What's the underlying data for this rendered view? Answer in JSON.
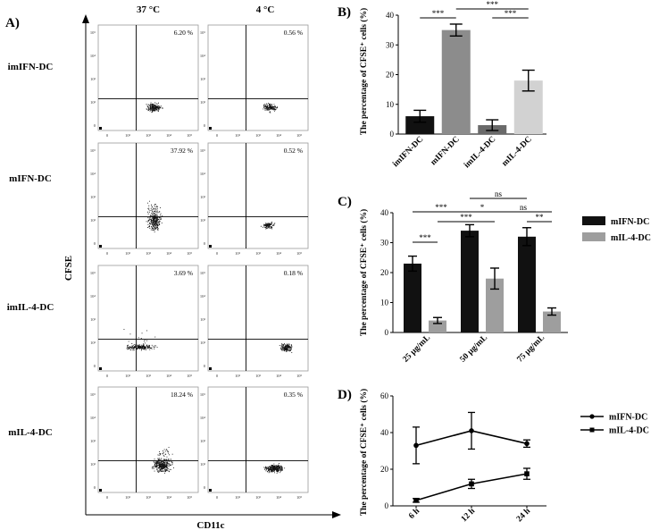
{
  "panelA": {
    "label": "A)",
    "col_headers": [
      "37 °C",
      "4 °C"
    ],
    "row_labels": [
      "imIFN-DC",
      "mIFN-DC",
      "imIL-4-DC",
      "mIL-4-DC"
    ],
    "y_axis_label": "CFSE",
    "x_axis_label": "CD11c",
    "y_ticks": [
      "10⁵",
      "10⁴",
      "10³",
      "10²",
      "0"
    ],
    "x_ticks": [
      "0",
      "10²",
      "10³",
      "10⁴",
      "10⁵"
    ],
    "percentages": [
      [
        "6.20 %",
        "0.56 %"
      ],
      [
        "37.92 %",
        "0.52 %"
      ],
      [
        "3.69 %",
        "0.18 %"
      ],
      [
        "18.24 %",
        "0.35 %"
      ]
    ]
  },
  "chart_data": [
    {
      "panel": "B)",
      "type": "bar",
      "ylabel": "The percentage of CFSE⁺ cells (%)",
      "categories": [
        "imIFN-DC",
        "mIFN-DC",
        "imIL-4-DC",
        "mIL-4-DC"
      ],
      "values": [
        6,
        35,
        3,
        18
      ],
      "errors": [
        2,
        2,
        1.8,
        3.5
      ],
      "colors": [
        "#111111",
        "#8c8c8c",
        "#6a6a6a",
        "#d2d2d2"
      ],
      "ylim": [
        0,
        40
      ],
      "yticks": [
        "0",
        "10",
        "20",
        "30",
        "40"
      ],
      "significance": [
        {
          "from": 0,
          "to": 1,
          "label": "***"
        },
        {
          "from": 1,
          "to": 3,
          "label": "***"
        },
        {
          "from": 2,
          "to": 3,
          "label": "***"
        }
      ]
    },
    {
      "panel": "C)",
      "type": "bar",
      "ylabel": "The percentage of CFSE⁺ cells (%)",
      "categories": [
        "25 μg/mL",
        "50 μg/mL",
        "75 μg/mL"
      ],
      "series": [
        {
          "name": "mIFN-DC",
          "values": [
            23,
            34,
            32
          ],
          "errors": [
            2.5,
            2,
            3
          ],
          "color": "#111111"
        },
        {
          "name": "mIL-4-DC",
          "values": [
            4,
            18,
            7
          ],
          "errors": [
            1,
            3.5,
            1.2
          ],
          "color": "#9e9e9e"
        }
      ],
      "ylim": [
        0,
        40
      ],
      "yticks": [
        "0",
        "10",
        "20",
        "30",
        "40"
      ],
      "significance": [
        {
          "label": "***",
          "note": "25 mIFN vs 25 mIL-4"
        },
        {
          "label": "***",
          "note": "25 mIFN vs 50 mIFN"
        },
        {
          "label": "***",
          "note": "25 mIL-4 vs 50 mIL-4"
        },
        {
          "label": "ns",
          "note": "50 mIFN vs 75 mIFN"
        },
        {
          "label": "*",
          "note": "50 mIFN vs 50 mIL-4"
        },
        {
          "label": "ns",
          "note": "50 mIL-4 vs 75 mIL-4"
        },
        {
          "label": "**",
          "note": "75 mIFN vs 75 mIL-4"
        }
      ],
      "legend": [
        "mIFN-DC",
        "mIL-4-DC"
      ]
    },
    {
      "panel": "D)",
      "type": "line",
      "ylabel": "The percentage of CFSE⁺ cells (%)",
      "x": [
        "6 h",
        "12 h",
        "24 h"
      ],
      "series": [
        {
          "name": "mIFN-DC",
          "values": [
            33,
            41,
            34
          ],
          "errors": [
            10,
            10,
            2
          ]
        },
        {
          "name": "mIL-4-DC",
          "values": [
            3,
            12,
            17.5
          ],
          "errors": [
            1,
            2.5,
            3
          ]
        }
      ],
      "ylim": [
        0,
        60
      ],
      "yticks": [
        "0",
        "20",
        "40",
        "60"
      ],
      "legend": [
        "mIFN-DC",
        "mIL-4-DC"
      ]
    }
  ]
}
